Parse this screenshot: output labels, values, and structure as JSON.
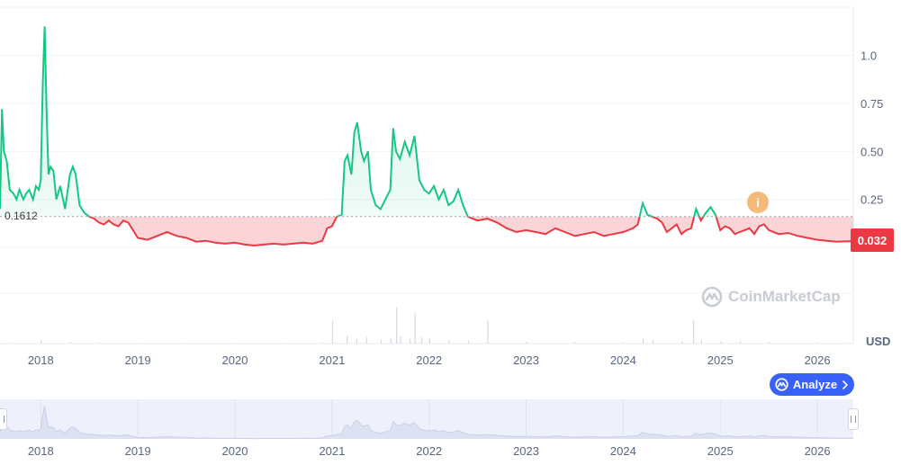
{
  "chart_data": {
    "type": "area",
    "currency_unit": "USD",
    "reference_label": "0.1612",
    "reference_value": 0.1612,
    "current_price_label": "0.032",
    "current_price": 0.032,
    "ylim": [
      -0.5,
      1.25
    ],
    "y_ticks": [
      {
        "value": 0.25,
        "label": "0.25"
      },
      {
        "value": 0.5,
        "label": "0.50"
      },
      {
        "value": 0.75,
        "label": "0.75"
      },
      {
        "value": 1.0,
        "label": "1.0"
      }
    ],
    "x_range": [
      2017.58,
      2026.37
    ],
    "x_ticks": [
      {
        "value": 2018,
        "label": "2018"
      },
      {
        "value": 2019,
        "label": "2019"
      },
      {
        "value": 2020,
        "label": "2020"
      },
      {
        "value": 2021,
        "label": "2021"
      },
      {
        "value": 2022,
        "label": "2022"
      },
      {
        "value": 2023,
        "label": "2023"
      },
      {
        "value": 2024,
        "label": "2024"
      },
      {
        "value": 2025,
        "label": "2025"
      },
      {
        "value": 2026,
        "label": "2026"
      }
    ],
    "grid": "horizontal",
    "up_color": "#16c784",
    "down_color": "#ea3943",
    "series": [
      {
        "x": [
          2017.58,
          2017.6,
          2017.62,
          2017.65,
          2017.68,
          2017.72,
          2017.75,
          2017.78,
          2017.82,
          2017.85,
          2017.88,
          2017.92,
          2017.95,
          2017.98,
          2018.0,
          2018.02,
          2018.04,
          2018.06,
          2018.08,
          2018.1,
          2018.13,
          2018.16,
          2018.2,
          2018.25,
          2018.3,
          2018.33,
          2018.36,
          2018.4,
          2018.45,
          2018.5,
          2018.55,
          2018.6,
          2018.65,
          2018.7,
          2018.75,
          2018.8,
          2018.85,
          2018.9,
          2018.95,
          2019.0,
          2019.1,
          2019.2,
          2019.3,
          2019.4,
          2019.5,
          2019.6,
          2019.7,
          2019.8,
          2019.9,
          2020.0,
          2020.1,
          2020.2,
          2020.3,
          2020.4,
          2020.5,
          2020.6,
          2020.7,
          2020.8,
          2020.9,
          2020.95,
          2021.0,
          2021.05,
          2021.1,
          2021.13,
          2021.16,
          2021.2,
          2021.23,
          2021.26,
          2021.3,
          2021.33,
          2021.37,
          2021.4,
          2021.45,
          2021.5,
          2021.55,
          2021.6,
          2021.63,
          2021.66,
          2021.7,
          2021.75,
          2021.8,
          2021.85,
          2021.9,
          2021.95,
          2022.0,
          2022.05,
          2022.1,
          2022.15,
          2022.2,
          2022.25,
          2022.3,
          2022.35,
          2022.4,
          2022.45,
          2022.5,
          2022.6,
          2022.7,
          2022.8,
          2022.9,
          2023.0,
          2023.1,
          2023.2,
          2023.3,
          2023.4,
          2023.5,
          2023.6,
          2023.7,
          2023.8,
          2023.9,
          2024.0,
          2024.1,
          2024.15,
          2024.2,
          2024.25,
          2024.3,
          2024.35,
          2024.4,
          2024.45,
          2024.5,
          2024.55,
          2024.6,
          2024.65,
          2024.7,
          2024.75,
          2024.8,
          2024.85,
          2024.9,
          2024.95,
          2025.0,
          2025.05,
          2025.1,
          2025.15,
          2025.2,
          2025.25,
          2025.3,
          2025.35,
          2025.4,
          2025.45,
          2025.5,
          2025.6,
          2025.7,
          2025.8,
          2025.9,
          2026.0,
          2026.1,
          2026.2,
          2026.3,
          2026.37
        ],
        "y": [
          0.2,
          0.72,
          0.5,
          0.45,
          0.3,
          0.28,
          0.25,
          0.3,
          0.25,
          0.28,
          0.3,
          0.25,
          0.32,
          0.3,
          0.35,
          0.85,
          1.15,
          0.7,
          0.38,
          0.42,
          0.4,
          0.25,
          0.32,
          0.2,
          0.38,
          0.42,
          0.38,
          0.22,
          0.18,
          0.16,
          0.15,
          0.13,
          0.12,
          0.14,
          0.12,
          0.11,
          0.14,
          0.13,
          0.09,
          0.05,
          0.04,
          0.06,
          0.08,
          0.06,
          0.05,
          0.03,
          0.035,
          0.025,
          0.02,
          0.025,
          0.015,
          0.01,
          0.015,
          0.02,
          0.015,
          0.02,
          0.025,
          0.02,
          0.035,
          0.1,
          0.11,
          0.16,
          0.17,
          0.45,
          0.48,
          0.38,
          0.6,
          0.65,
          0.5,
          0.45,
          0.5,
          0.3,
          0.22,
          0.2,
          0.25,
          0.3,
          0.62,
          0.5,
          0.46,
          0.55,
          0.48,
          0.58,
          0.35,
          0.3,
          0.28,
          0.32,
          0.25,
          0.3,
          0.22,
          0.24,
          0.3,
          0.22,
          0.16,
          0.15,
          0.14,
          0.15,
          0.13,
          0.1,
          0.08,
          0.09,
          0.08,
          0.07,
          0.1,
          0.08,
          0.06,
          0.07,
          0.08,
          0.06,
          0.07,
          0.08,
          0.1,
          0.12,
          0.23,
          0.17,
          0.16,
          0.15,
          0.13,
          0.08,
          0.1,
          0.12,
          0.07,
          0.09,
          0.1,
          0.2,
          0.14,
          0.18,
          0.21,
          0.17,
          0.09,
          0.11,
          0.1,
          0.07,
          0.08,
          0.09,
          0.1,
          0.07,
          0.11,
          0.12,
          0.09,
          0.07,
          0.075,
          0.06,
          0.05,
          0.04,
          0.035,
          0.03,
          0.032,
          0.032
        ]
      }
    ],
    "volume": {
      "x": [
        2017.7,
        2018.0,
        2018.3,
        2018.6,
        2019.0,
        2019.5,
        2020.0,
        2020.5,
        2020.9,
        2021.0,
        2021.15,
        2021.25,
        2021.35,
        2021.5,
        2021.6,
        2021.66,
        2021.7,
        2021.8,
        2021.85,
        2021.92,
        2022.0,
        2022.2,
        2022.4,
        2022.6,
        2023.0,
        2023.5,
        2024.0,
        2024.2,
        2024.3,
        2024.6,
        2024.72,
        2024.8,
        2025.0,
        2025.2,
        2025.5,
        2026.0,
        2026.3
      ],
      "values": [
        0.02,
        0.08,
        0.03,
        0.02,
        0.01,
        0.01,
        0.01,
        0.01,
        0.02,
        0.45,
        0.15,
        0.1,
        0.12,
        0.08,
        0.1,
        0.7,
        0.15,
        0.1,
        0.6,
        0.12,
        0.1,
        0.08,
        0.06,
        0.45,
        0.04,
        0.03,
        0.02,
        0.1,
        0.08,
        0.04,
        0.45,
        0.08,
        0.04,
        0.05,
        0.03,
        0.02,
        0.02
      ]
    }
  },
  "ui": {
    "analyze_label": "Analyze",
    "watermark_text": "CoinMarketCap",
    "event_marker_glyph": "i",
    "handle_glyph": "||"
  }
}
